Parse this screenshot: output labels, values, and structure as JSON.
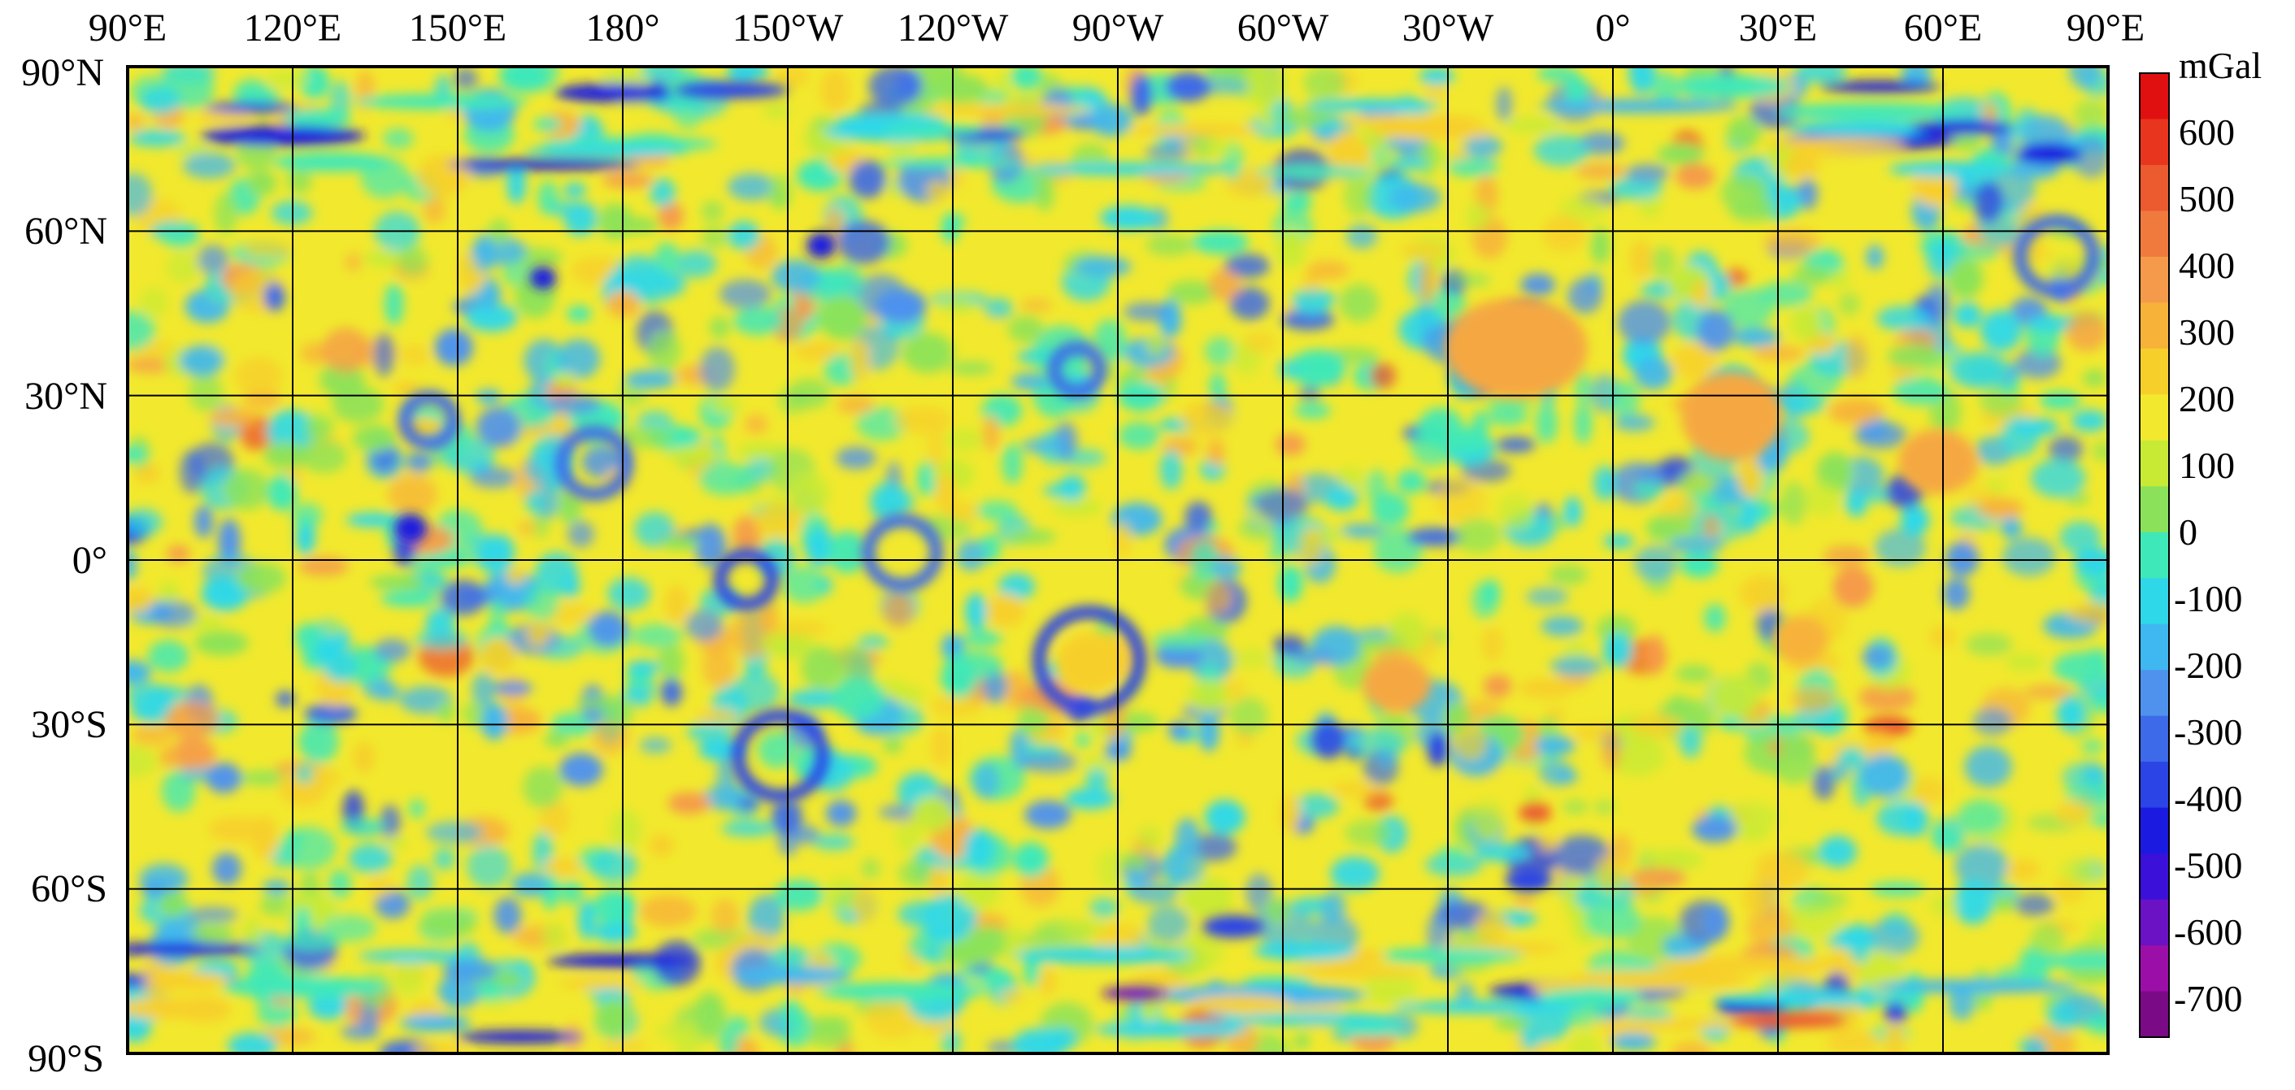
{
  "map": {
    "projection": "equirectangular",
    "longitude_labels": [
      "90°E",
      "120°E",
      "150°E",
      "180°",
      "150°W",
      "120°W",
      "90°W",
      "60°W",
      "30°W",
      "0°",
      "30°E",
      "60°E",
      "90°E"
    ],
    "latitude_labels": [
      "90°N",
      "60°N",
      "30°N",
      "0°",
      "30°S",
      "60°S",
      "90°S"
    ],
    "grid_interval_degrees": 30,
    "grid": true,
    "background_color": "#f2e92e"
  },
  "colorbar": {
    "unit": "mGal",
    "tick_labels": [
      "600",
      "500",
      "400",
      "300",
      "200",
      "100",
      "0",
      "-100",
      "-200",
      "-300",
      "-400",
      "-500",
      "-600",
      "-700"
    ],
    "range": [
      -750,
      700
    ],
    "colors": [
      "#7a0a86",
      "#9b0fa8",
      "#6a12c4",
      "#3b10d8",
      "#1a1ae0",
      "#2a44e6",
      "#3d6ae8",
      "#4e92ee",
      "#3fb7f0",
      "#2ed8e8",
      "#3fe8b8",
      "#8be25a",
      "#c8ea34",
      "#f2e92e",
      "#f7cf2a",
      "#f7b23a",
      "#f59a4a",
      "#f07a3e",
      "#ec5a30",
      "#e8361e",
      "#e01010"
    ]
  }
}
